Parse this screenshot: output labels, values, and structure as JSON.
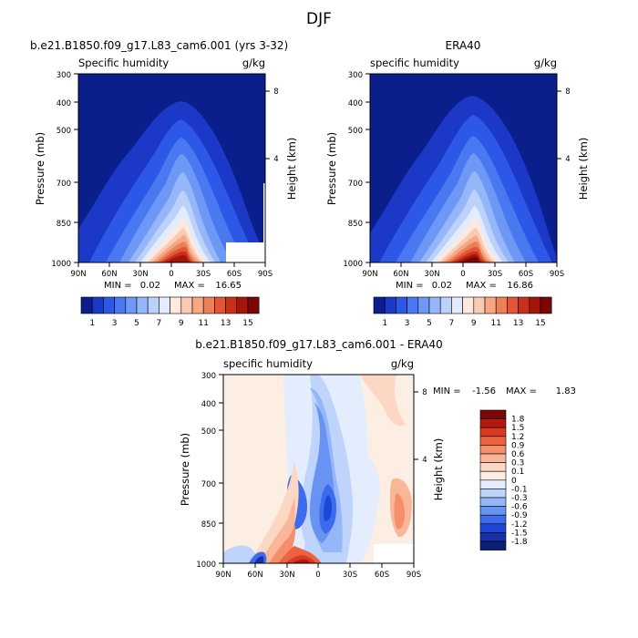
{
  "figure": {
    "title": "DJF"
  },
  "chart_data": [
    {
      "type": "heatmap",
      "panel_title": "b.e21.B1850.f09_g17.L83_cam6.001 (yrs 3-32)",
      "variable_label": "Specific humidity",
      "units": "g/kg",
      "ylabel": "Pressure (mb)",
      "ylabel_right": "Height (km)",
      "x_ticks": [
        "90N",
        "60N",
        "30N",
        "0",
        "30S",
        "60S",
        "90S"
      ],
      "x_values": [
        90,
        60,
        30,
        0,
        -30,
        -60,
        -90
      ],
      "y_ticks": [
        "300",
        "400",
        "500",
        "700",
        "850",
        "1000"
      ],
      "y_values": [
        300,
        400,
        500,
        700,
        850,
        1000
      ],
      "y_scale": "log-pressure",
      "right_ticks": [
        "8",
        "4"
      ],
      "min_label": "MIN =",
      "min": "0.02",
      "max_label": "MAX =",
      "max": "16.65",
      "colorbar": {
        "orientation": "horizontal",
        "labels": [
          "1",
          "3",
          "5",
          "7",
          "9",
          "11",
          "13",
          "15"
        ],
        "colors": [
          "#0a1e8c",
          "#1b38c7",
          "#2d57e6",
          "#4a78f0",
          "#6e98f5",
          "#95b6f8",
          "#bdd2fa",
          "#e2ecfd",
          "#fde9dd",
          "#fbcab2",
          "#f5a883",
          "#ee8057",
          "#e25634",
          "#c92f1b",
          "#a3160d",
          "#7a0707"
        ]
      }
    },
    {
      "type": "heatmap",
      "panel_title": "ERA40",
      "variable_label": "specific humidity",
      "units": "g/kg",
      "ylabel": "Pressure (mb)",
      "ylabel_right": "Height (km)",
      "x_ticks": [
        "90N",
        "60N",
        "30N",
        "0",
        "30S",
        "60S",
        "90S"
      ],
      "x_values": [
        90,
        60,
        30,
        0,
        -30,
        -60,
        -90
      ],
      "y_ticks": [
        "300",
        "400",
        "500",
        "700",
        "850",
        "1000"
      ],
      "y_values": [
        300,
        400,
        500,
        700,
        850,
        1000
      ],
      "y_scale": "log-pressure",
      "right_ticks": [
        "8",
        "4"
      ],
      "min_label": "MIN =",
      "min": "0.02",
      "max_label": "MAX =",
      "max": "16.86",
      "colorbar": {
        "orientation": "horizontal",
        "labels": [
          "1",
          "3",
          "5",
          "7",
          "9",
          "11",
          "13",
          "15"
        ],
        "colors": [
          "#0a1e8c",
          "#1b38c7",
          "#2d57e6",
          "#4a78f0",
          "#6e98f5",
          "#95b6f8",
          "#bdd2fa",
          "#e2ecfd",
          "#fde9dd",
          "#fbcab2",
          "#f5a883",
          "#ee8057",
          "#e25634",
          "#c92f1b",
          "#a3160d",
          "#7a0707"
        ]
      }
    },
    {
      "type": "heatmap",
      "panel_title": "b.e21.B1850.f09_g17.L83_cam6.001 - ERA40",
      "variable_label": "specific humidity",
      "units": "g/kg",
      "ylabel": "Pressure (mb)",
      "ylabel_right": "Height (km)",
      "x_ticks": [
        "90N",
        "60N",
        "30N",
        "0",
        "30S",
        "60S",
        "90S"
      ],
      "x_values": [
        90,
        60,
        30,
        0,
        -30,
        -60,
        -90
      ],
      "y_ticks": [
        "300",
        "400",
        "500",
        "700",
        "850",
        "1000"
      ],
      "y_values": [
        300,
        400,
        500,
        700,
        850,
        1000
      ],
      "y_scale": "log-pressure",
      "right_ticks": [
        "8",
        "4"
      ],
      "min_label": "MIN =",
      "min": "-1.56",
      "max_label": "MAX =",
      "max": "1.83",
      "colorbar": {
        "orientation": "vertical",
        "labels": [
          "1.8",
          "1.5",
          "1.2",
          "0.9",
          "0.6",
          "0.3",
          "0.1",
          "0",
          "-0.1",
          "-0.3",
          "-0.6",
          "-0.9",
          "-1.2",
          "-1.5",
          "-1.8"
        ],
        "colors": [
          "#7a0707",
          "#b21a10",
          "#d83a22",
          "#ec6340",
          "#f58f6b",
          "#f9b699",
          "#fcd7c4",
          "#fdeee4",
          "#e3edfd",
          "#bfd4fa",
          "#95b6f8",
          "#6893f3",
          "#3c6cec",
          "#1f47d6",
          "#1530a8",
          "#0a1e7a"
        ]
      }
    }
  ]
}
